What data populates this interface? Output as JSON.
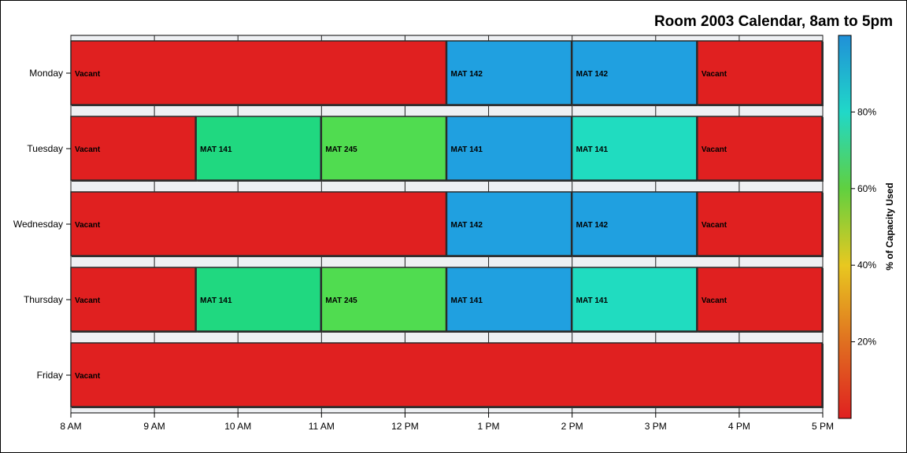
{
  "chart_data": {
    "type": "bar",
    "subtype": "horizontal-timeline",
    "title": "Room 2003 Calendar, 8am to 5pm",
    "x_ticks": [
      "8 AM",
      "9 AM",
      "10 AM",
      "11 AM",
      "12 PM",
      "1 PM",
      "2 PM",
      "3 PM",
      "4 PM",
      "5 PM"
    ],
    "xlim": [
      8,
      17
    ],
    "categories": [
      "Monday",
      "Tuesday",
      "Wednesday",
      "Thursday",
      "Friday"
    ],
    "grid": true,
    "legend": {
      "type": "color-gradient",
      "placement": "right",
      "title": "% of Capacity Used",
      "ticks": [
        "20%",
        "40%",
        "60%",
        "80%"
      ],
      "tick_values": [
        20,
        40,
        60,
        80
      ],
      "range": [
        0,
        100
      ],
      "colors": [
        "#e02020",
        "#e07020",
        "#e8c820",
        "#60d040",
        "#20d8c8",
        "#2090d8"
      ]
    },
    "series": [
      {
        "day": "Monday",
        "blocks": [
          {
            "label": "Vacant",
            "start": 8,
            "end": 12.5,
            "color": "#e02020"
          },
          {
            "label": "MAT 142",
            "start": 12.5,
            "end": 14,
            "color": "#20a0e0"
          },
          {
            "label": "MAT 142",
            "start": 14,
            "end": 15.5,
            "color": "#20a0e0"
          },
          {
            "label": "Vacant",
            "start": 15.5,
            "end": 17,
            "color": "#e02020"
          }
        ]
      },
      {
        "day": "Tuesday",
        "blocks": [
          {
            "label": "Vacant",
            "start": 8,
            "end": 9.5,
            "color": "#e02020"
          },
          {
            "label": "MAT 141",
            "start": 9.5,
            "end": 11,
            "color": "#20d880"
          },
          {
            "label": "MAT 245",
            "start": 11,
            "end": 12.5,
            "color": "#50dc50"
          },
          {
            "label": "MAT 141",
            "start": 12.5,
            "end": 14,
            "color": "#20a0e0"
          },
          {
            "label": "MAT 141",
            "start": 14,
            "end": 15.5,
            "color": "#20dcc0"
          },
          {
            "label": "Vacant",
            "start": 15.5,
            "end": 17,
            "color": "#e02020"
          }
        ]
      },
      {
        "day": "Wednesday",
        "blocks": [
          {
            "label": "Vacant",
            "start": 8,
            "end": 12.5,
            "color": "#e02020"
          },
          {
            "label": "MAT 142",
            "start": 12.5,
            "end": 14,
            "color": "#20a0e0"
          },
          {
            "label": "MAT 142",
            "start": 14,
            "end": 15.5,
            "color": "#20a0e0"
          },
          {
            "label": "Vacant",
            "start": 15.5,
            "end": 17,
            "color": "#e02020"
          }
        ]
      },
      {
        "day": "Thursday",
        "blocks": [
          {
            "label": "Vacant",
            "start": 8,
            "end": 9.5,
            "color": "#e02020"
          },
          {
            "label": "MAT 141",
            "start": 9.5,
            "end": 11,
            "color": "#20d880"
          },
          {
            "label": "MAT 245",
            "start": 11,
            "end": 12.5,
            "color": "#50dc50"
          },
          {
            "label": "MAT 141",
            "start": 12.5,
            "end": 14,
            "color": "#20a0e0"
          },
          {
            "label": "MAT 141",
            "start": 14,
            "end": 15.5,
            "color": "#20dcc0"
          },
          {
            "label": "Vacant",
            "start": 15.5,
            "end": 17,
            "color": "#e02020"
          }
        ]
      },
      {
        "day": "Friday",
        "blocks": [
          {
            "label": "Vacant",
            "start": 8,
            "end": 17,
            "color": "#e02020"
          }
        ]
      }
    ]
  }
}
